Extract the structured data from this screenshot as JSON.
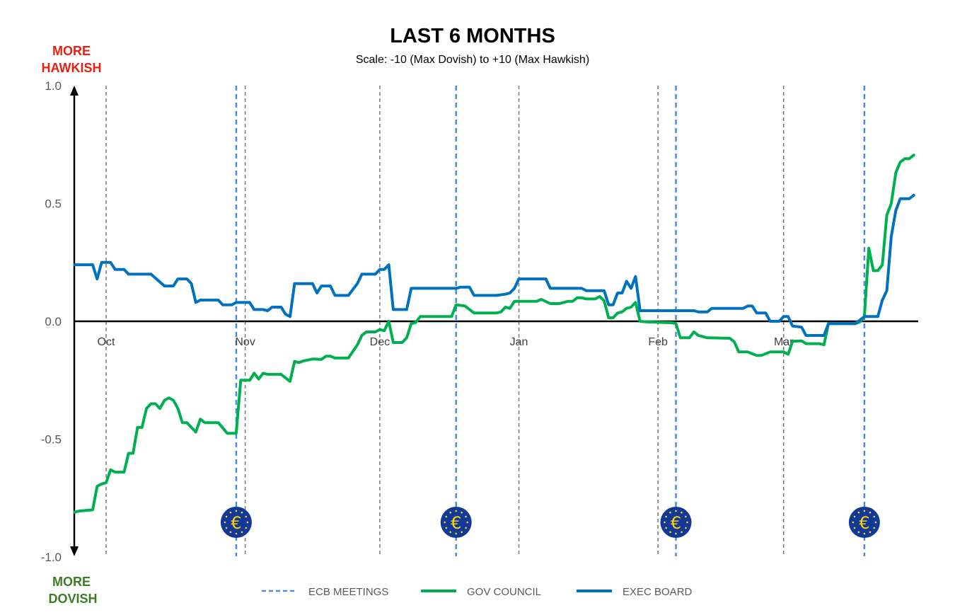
{
  "chart_data": {
    "type": "line",
    "title": "LAST 6 MONTHS",
    "subtitle": "Scale: -10 (Max Dovish)  to +10 (Max Hawkish)",
    "top_annotation": [
      "MORE",
      "HAWKISH"
    ],
    "bottom_annotation": [
      "MORE",
      "DOVISH"
    ],
    "top_annotation_color": "#e8200f",
    "bottom_annotation_color": "#3b7d23",
    "ylim": [
      -1.0,
      1.0
    ],
    "yticks": [
      "1.0",
      "0.5",
      "0.0",
      "-0.5",
      "-1.0"
    ],
    "xlim": [
      "2025-09-24",
      "2026-03-31"
    ],
    "xticks": [
      {
        "date": "2025-10-01",
        "label": "Oct"
      },
      {
        "date": "2025-11-01",
        "label": "Nov"
      },
      {
        "date": "2025-12-01",
        "label": "Dec"
      },
      {
        "date": "2026-01-01",
        "label": "Jan"
      },
      {
        "date": "2026-02-01",
        "label": "Feb"
      },
      {
        "date": "2026-03-01",
        "label": "Mar"
      }
    ],
    "grid": "vertical dashed lines at month starts",
    "legend_position": "bottom",
    "ecb_meetings": {
      "name": "ECB MEETINGS",
      "color": "#4a90d9",
      "icon": "ecb-euro-logo",
      "dates": [
        "2025-10-30",
        "2025-12-18",
        "2026-02-05",
        "2026-03-19"
      ]
    },
    "series": [
      {
        "name": "GOV COUNCIL",
        "color": "#00b050",
        "points": [
          [
            "2025-09-24",
            -0.81
          ],
          [
            "2025-09-25",
            -0.805
          ],
          [
            "2025-09-28",
            -0.8
          ],
          [
            "2025-09-29",
            -0.7
          ],
          [
            "2025-09-30",
            -0.69
          ],
          [
            "2025-10-01",
            -0.685
          ],
          [
            "2025-10-02",
            -0.63
          ],
          [
            "2025-10-03",
            -0.64
          ],
          [
            "2025-10-05",
            -0.64
          ],
          [
            "2025-10-06",
            -0.56
          ],
          [
            "2025-10-07",
            -0.56
          ],
          [
            "2025-10-08",
            -0.45
          ],
          [
            "2025-10-09",
            -0.45
          ],
          [
            "2025-10-10",
            -0.37
          ],
          [
            "2025-10-11",
            -0.35
          ],
          [
            "2025-10-12",
            -0.35
          ],
          [
            "2025-10-13",
            -0.37
          ],
          [
            "2025-10-14",
            -0.335
          ],
          [
            "2025-10-15",
            -0.325
          ],
          [
            "2025-10-16",
            -0.335
          ],
          [
            "2025-10-17",
            -0.37
          ],
          [
            "2025-10-18",
            -0.43
          ],
          [
            "2025-10-19",
            -0.43
          ],
          [
            "2025-10-21",
            -0.47
          ],
          [
            "2025-10-22",
            -0.415
          ],
          [
            "2025-10-23",
            -0.43
          ],
          [
            "2025-10-26",
            -0.43
          ],
          [
            "2025-10-28",
            -0.475
          ],
          [
            "2025-10-30",
            -0.475
          ],
          [
            "2025-10-31",
            -0.25
          ],
          [
            "2025-11-02",
            -0.25
          ],
          [
            "2025-11-03",
            -0.22
          ],
          [
            "2025-11-04",
            -0.245
          ],
          [
            "2025-11-05",
            -0.22
          ],
          [
            "2025-11-06",
            -0.225
          ],
          [
            "2025-11-09",
            -0.225
          ],
          [
            "2025-11-11",
            -0.255
          ],
          [
            "2025-11-12",
            -0.17
          ],
          [
            "2025-11-13",
            -0.175
          ],
          [
            "2025-11-14",
            -0.168
          ],
          [
            "2025-11-16",
            -0.16
          ],
          [
            "2025-11-18",
            -0.162
          ],
          [
            "2025-11-19",
            -0.148
          ],
          [
            "2025-11-20",
            -0.148
          ],
          [
            "2025-11-21",
            -0.156
          ],
          [
            "2025-11-24",
            -0.156
          ],
          [
            "2025-11-26",
            -0.1
          ],
          [
            "2025-11-27",
            -0.06
          ],
          [
            "2025-11-28",
            -0.045
          ],
          [
            "2025-11-30",
            -0.045
          ],
          [
            "2025-12-01",
            -0.035
          ],
          [
            "2025-12-02",
            -0.04
          ],
          [
            "2025-12-03",
            0.0
          ],
          [
            "2025-12-04",
            -0.09
          ],
          [
            "2025-12-06",
            -0.09
          ],
          [
            "2025-12-07",
            -0.07
          ],
          [
            "2025-12-08",
            -0.01
          ],
          [
            "2025-12-09",
            -0.005
          ],
          [
            "2025-12-10",
            0.02
          ],
          [
            "2025-12-17",
            0.02
          ],
          [
            "2025-12-18",
            0.07
          ],
          [
            "2025-12-20",
            0.065
          ],
          [
            "2025-12-22",
            0.035
          ],
          [
            "2025-12-27",
            0.035
          ],
          [
            "2025-12-28",
            0.04
          ],
          [
            "2025-12-29",
            0.06
          ],
          [
            "2025-12-30",
            0.055
          ],
          [
            "2025-12-31",
            0.085
          ],
          [
            "2026-01-05",
            0.085
          ],
          [
            "2026-01-06",
            0.093
          ],
          [
            "2026-01-08",
            0.075
          ],
          [
            "2026-01-10",
            0.075
          ],
          [
            "2026-01-12",
            0.085
          ],
          [
            "2026-01-13",
            0.085
          ],
          [
            "2026-01-14",
            0.1
          ],
          [
            "2026-01-15",
            0.1
          ],
          [
            "2026-01-16",
            0.095
          ],
          [
            "2026-01-18",
            0.095
          ],
          [
            "2026-01-19",
            0.105
          ],
          [
            "2026-01-20",
            0.087
          ],
          [
            "2026-01-21",
            0.015
          ],
          [
            "2026-01-22",
            0.015
          ],
          [
            "2026-01-23",
            0.035
          ],
          [
            "2026-01-24",
            0.04
          ],
          [
            "2026-01-25",
            0.055
          ],
          [
            "2026-01-26",
            0.06
          ],
          [
            "2026-01-27",
            0.08
          ],
          [
            "2026-01-28",
            0.0
          ],
          [
            "2026-01-30",
            -0.003
          ],
          [
            "2026-02-04",
            -0.006
          ],
          [
            "2026-02-05",
            -0.01
          ],
          [
            "2026-02-06",
            -0.07
          ],
          [
            "2026-02-08",
            -0.07
          ],
          [
            "2026-02-09",
            -0.045
          ],
          [
            "2026-02-10",
            -0.06
          ],
          [
            "2026-02-12",
            -0.07
          ],
          [
            "2026-02-17",
            -0.072
          ],
          [
            "2026-02-18",
            -0.087
          ],
          [
            "2026-02-19",
            -0.13
          ],
          [
            "2026-02-21",
            -0.13
          ],
          [
            "2026-02-23",
            -0.145
          ],
          [
            "2026-02-24",
            -0.145
          ],
          [
            "2026-02-26",
            -0.13
          ],
          [
            "2026-03-01",
            -0.13
          ],
          [
            "2026-03-02",
            -0.14
          ],
          [
            "2026-03-03",
            -0.085
          ],
          [
            "2026-03-05",
            -0.083
          ],
          [
            "2026-03-06",
            -0.095
          ],
          [
            "2026-03-09",
            -0.095
          ],
          [
            "2026-03-10",
            -0.1
          ],
          [
            "2026-03-11",
            -0.01
          ],
          [
            "2026-03-17",
            -0.01
          ],
          [
            "2026-03-18",
            -0.003
          ],
          [
            "2026-03-19",
            0.02
          ],
          [
            "2026-03-20",
            0.31
          ],
          [
            "2026-03-21",
            0.215
          ],
          [
            "2026-03-22",
            0.215
          ],
          [
            "2026-03-23",
            0.24
          ],
          [
            "2026-03-24",
            0.45
          ],
          [
            "2026-03-25",
            0.5
          ],
          [
            "2026-03-26",
            0.63
          ],
          [
            "2026-03-27",
            0.675
          ],
          [
            "2026-03-28",
            0.69
          ],
          [
            "2026-03-29",
            0.69
          ],
          [
            "2026-03-30",
            0.705
          ]
        ]
      },
      {
        "name": "EXEC BOARD",
        "color": "#0070c0",
        "points": [
          [
            "2025-09-24",
            0.24
          ],
          [
            "2025-09-28",
            0.24
          ],
          [
            "2025-09-29",
            0.18
          ],
          [
            "2025-09-30",
            0.25
          ],
          [
            "2025-10-02",
            0.25
          ],
          [
            "2025-10-03",
            0.22
          ],
          [
            "2025-10-05",
            0.22
          ],
          [
            "2025-10-06",
            0.2
          ],
          [
            "2025-10-11",
            0.2
          ],
          [
            "2025-10-14",
            0.15
          ],
          [
            "2025-10-16",
            0.15
          ],
          [
            "2025-10-17",
            0.18
          ],
          [
            "2025-10-19",
            0.18
          ],
          [
            "2025-10-20",
            0.16
          ],
          [
            "2025-10-21",
            0.08
          ],
          [
            "2025-10-22",
            0.09
          ],
          [
            "2025-10-26",
            0.09
          ],
          [
            "2025-10-27",
            0.07
          ],
          [
            "2025-10-29",
            0.07
          ],
          [
            "2025-10-30",
            0.08
          ],
          [
            "2025-11-02",
            0.08
          ],
          [
            "2025-11-03",
            0.05
          ],
          [
            "2025-11-05",
            0.05
          ],
          [
            "2025-11-06",
            0.045
          ],
          [
            "2025-11-07",
            0.06
          ],
          [
            "2025-11-09",
            0.06
          ],
          [
            "2025-11-10",
            0.03
          ],
          [
            "2025-11-11",
            0.02
          ],
          [
            "2025-11-12",
            0.16
          ],
          [
            "2025-11-16",
            0.16
          ],
          [
            "2025-11-17",
            0.12
          ],
          [
            "2025-11-18",
            0.15
          ],
          [
            "2025-11-20",
            0.15
          ],
          [
            "2025-11-21",
            0.11
          ],
          [
            "2025-11-24",
            0.11
          ],
          [
            "2025-11-26",
            0.16
          ],
          [
            "2025-11-27",
            0.2
          ],
          [
            "2025-11-30",
            0.2
          ],
          [
            "2025-12-01",
            0.22
          ],
          [
            "2025-12-02",
            0.22
          ],
          [
            "2025-12-03",
            0.24
          ],
          [
            "2025-12-04",
            0.05
          ],
          [
            "2025-12-07",
            0.05
          ],
          [
            "2025-12-08",
            0.14
          ],
          [
            "2025-12-18",
            0.14
          ],
          [
            "2025-12-19",
            0.145
          ],
          [
            "2025-12-21",
            0.145
          ],
          [
            "2025-12-22",
            0.11
          ],
          [
            "2025-12-27",
            0.11
          ],
          [
            "2025-12-29",
            0.115
          ],
          [
            "2025-12-30",
            0.12
          ],
          [
            "2025-12-31",
            0.14
          ],
          [
            "2026-01-01",
            0.18
          ],
          [
            "2026-01-07",
            0.18
          ],
          [
            "2026-01-08",
            0.14
          ],
          [
            "2026-01-15",
            0.14
          ],
          [
            "2026-01-16",
            0.13
          ],
          [
            "2026-01-20",
            0.13
          ],
          [
            "2026-01-21",
            0.07
          ],
          [
            "2026-01-22",
            0.07
          ],
          [
            "2026-01-23",
            0.12
          ],
          [
            "2026-01-24",
            0.12
          ],
          [
            "2026-01-25",
            0.17
          ],
          [
            "2026-01-26",
            0.14
          ],
          [
            "2026-01-27",
            0.19
          ],
          [
            "2026-01-28",
            0.045
          ],
          [
            "2026-02-09",
            0.045
          ],
          [
            "2026-02-10",
            0.04
          ],
          [
            "2026-02-12",
            0.04
          ],
          [
            "2026-02-13",
            0.055
          ],
          [
            "2026-02-20",
            0.055
          ],
          [
            "2026-02-21",
            0.065
          ],
          [
            "2026-02-22",
            0.065
          ],
          [
            "2026-02-23",
            0.035
          ],
          [
            "2026-02-25",
            0.035
          ],
          [
            "2026-02-26",
            0.0
          ],
          [
            "2026-02-28",
            0.0
          ],
          [
            "2026-03-01",
            0.02
          ],
          [
            "2026-03-02",
            0.02
          ],
          [
            "2026-03-03",
            -0.02
          ],
          [
            "2026-03-05",
            -0.025
          ],
          [
            "2026-03-06",
            -0.06
          ],
          [
            "2026-03-10",
            -0.06
          ],
          [
            "2026-03-11",
            -0.01
          ],
          [
            "2026-03-17",
            -0.01
          ],
          [
            "2026-03-18",
            0.005
          ],
          [
            "2026-03-19",
            0.02
          ],
          [
            "2026-03-22",
            0.02
          ],
          [
            "2026-03-23",
            0.09
          ],
          [
            "2026-03-24",
            0.13
          ],
          [
            "2026-03-25",
            0.36
          ],
          [
            "2026-03-26",
            0.47
          ],
          [
            "2026-03-27",
            0.52
          ],
          [
            "2026-03-29",
            0.52
          ],
          [
            "2026-03-30",
            0.535
          ]
        ]
      }
    ]
  }
}
